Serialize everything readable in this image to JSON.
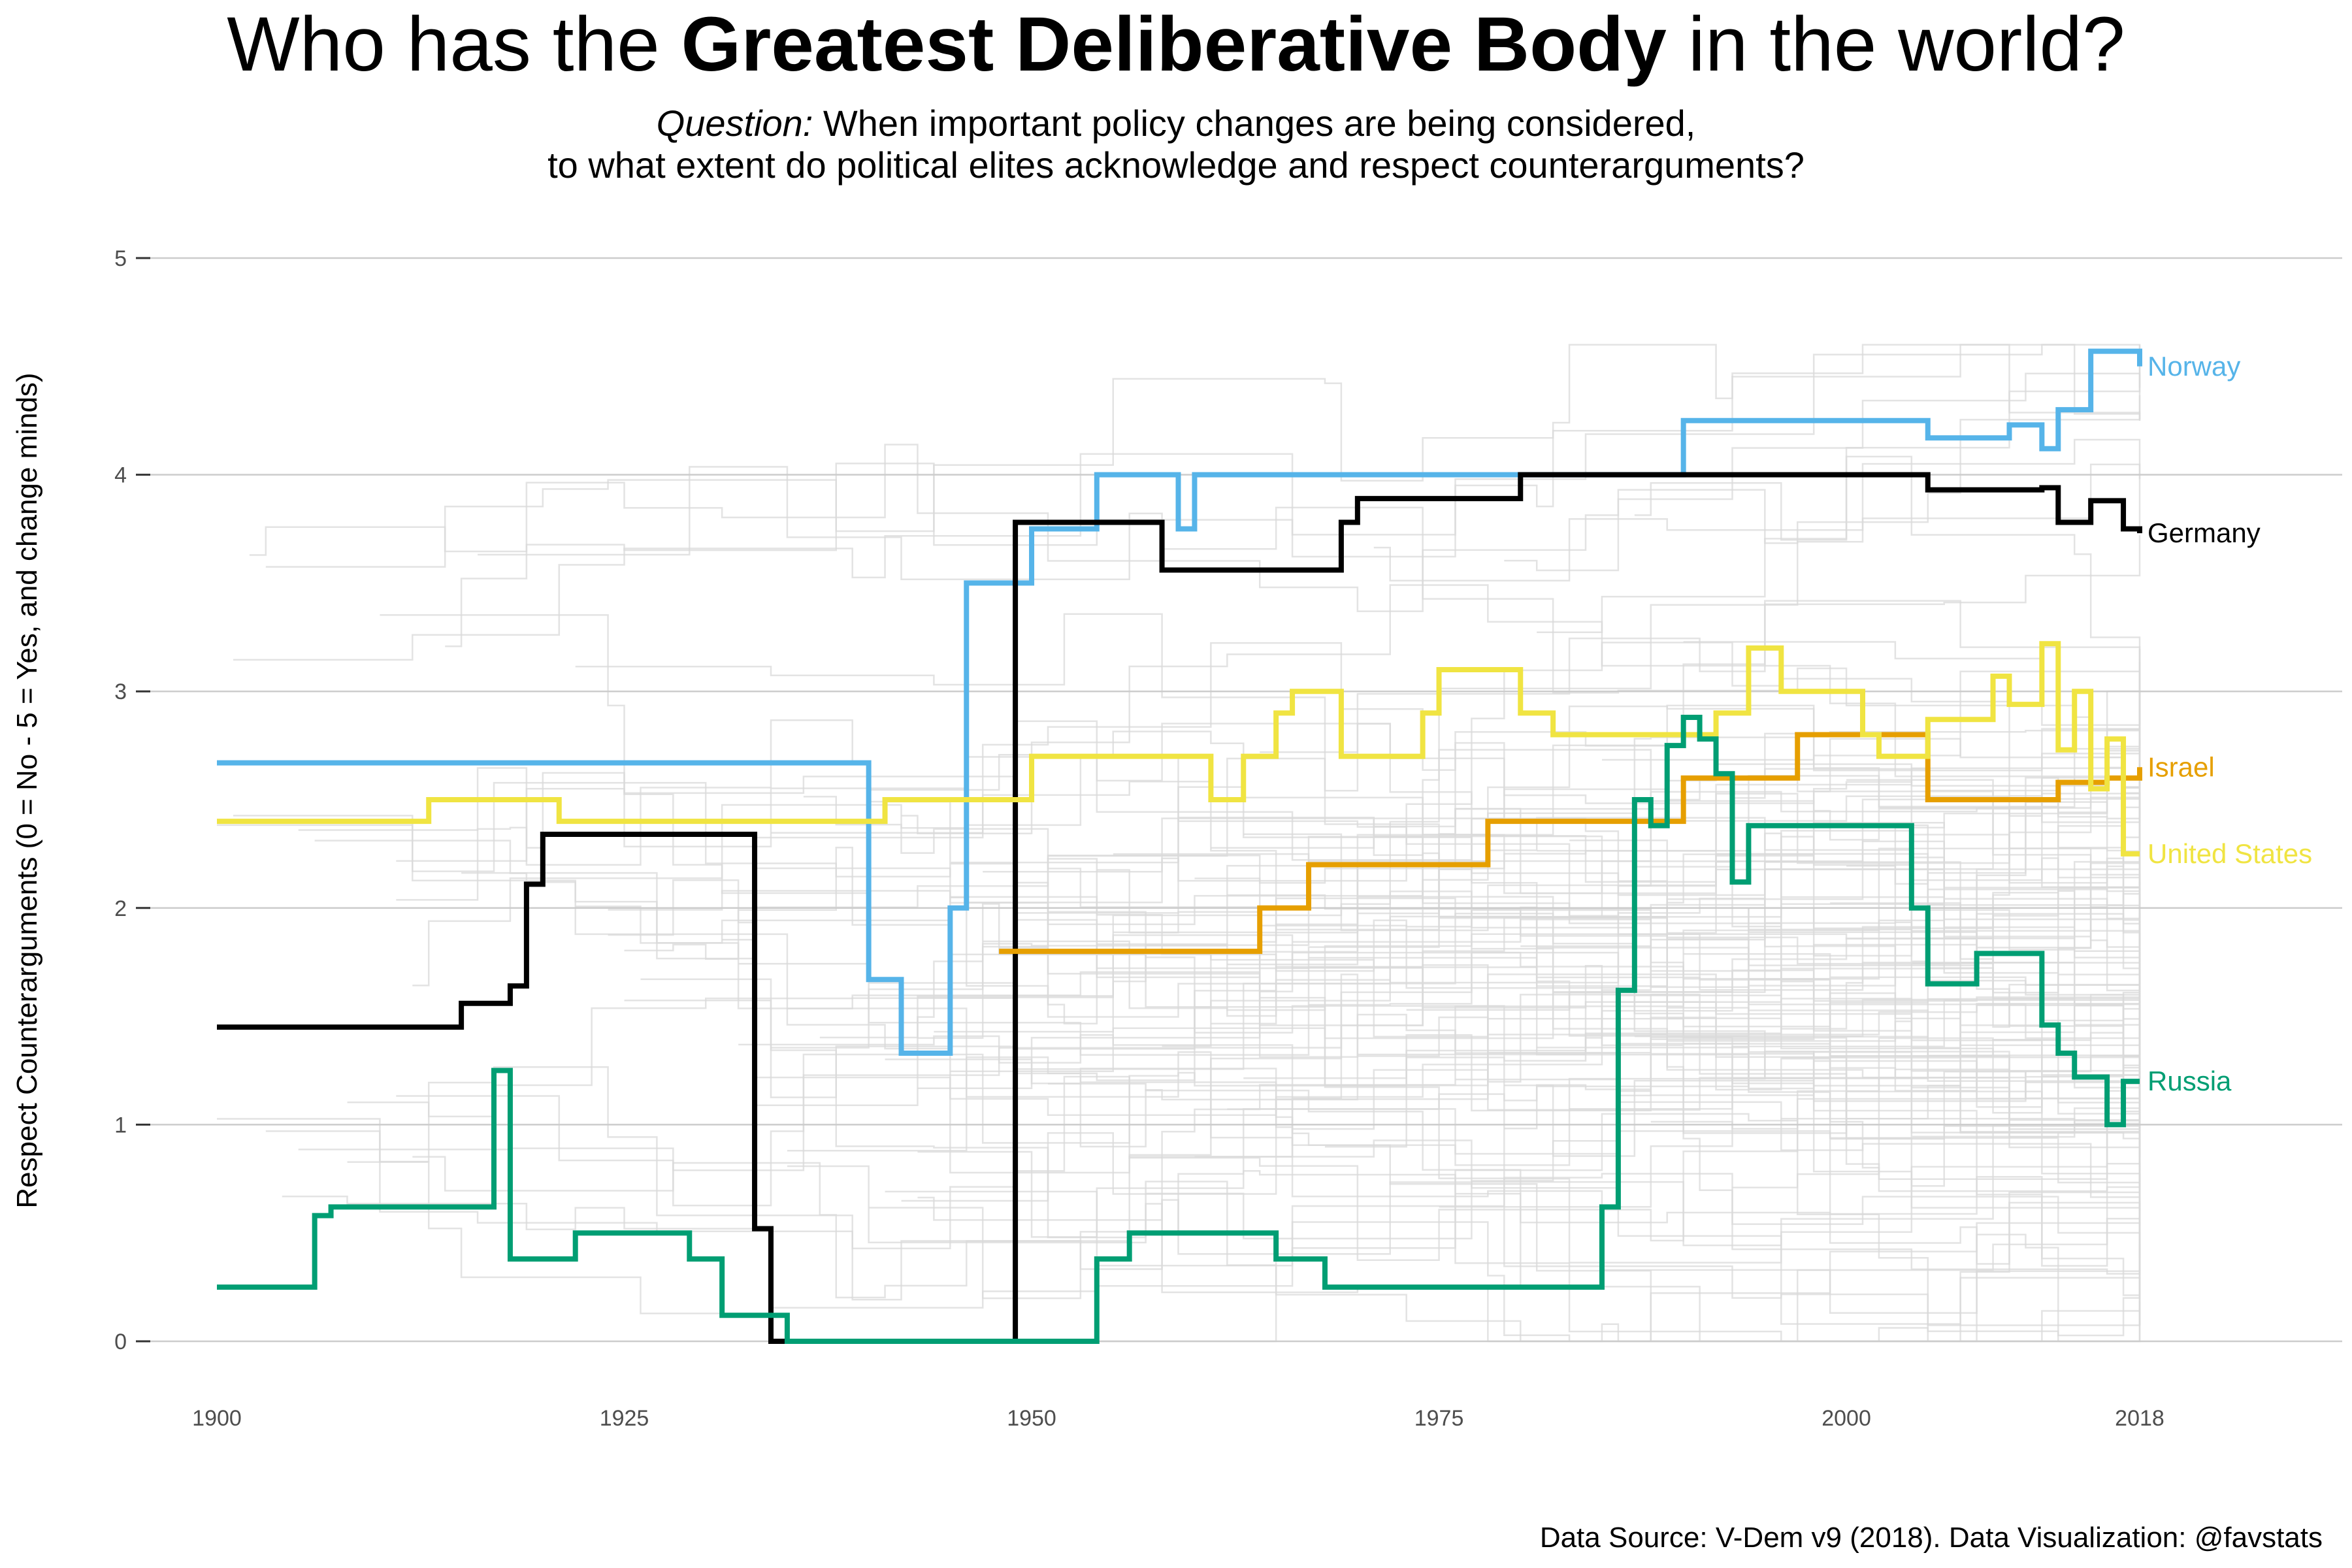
{
  "title": {
    "prefix": "Who has the ",
    "bold": "Greatest Deliberative Body",
    "suffix": " in the world?"
  },
  "subtitle": {
    "italic": "Question:",
    "line1_rest": " When important policy changes are being considered,",
    "line2": "to what extent do political elites acknowledge and respect counterarguments?"
  },
  "caption": "Data Source: V-Dem v9 (2018). Data Visualization: @favstats",
  "colors": {
    "Norway": "#56B4E9",
    "Germany": "#000000",
    "Israel": "#E69F00",
    "United States": "#F0E442",
    "Russia": "#009E73",
    "background_lines": "#d9d9d9",
    "grid": "#cccccc"
  },
  "chart_data": {
    "type": "line",
    "step": true,
    "title": "Who has the Greatest Deliberative Body in the world?",
    "xlabel": "",
    "ylabel": "Respect Counterarguments (0 = No - 5 = Yes, and change minds)",
    "xlim": [
      1900,
      2018
    ],
    "ylim": [
      0,
      5
    ],
    "x_ticks": [
      1900,
      1925,
      1950,
      1975,
      2000,
      2018
    ],
    "y_ticks": [
      0,
      1,
      2,
      3,
      4,
      5
    ],
    "grid": true,
    "background_series_note": "many grey lines for other countries",
    "series": [
      {
        "name": "Norway",
        "label": "Norway",
        "points": [
          [
            1900,
            2.67
          ],
          [
            1940,
            1.67
          ],
          [
            1942,
            1.33
          ],
          [
            1945,
            2.0
          ],
          [
            1946,
            3.5
          ],
          [
            1950,
            3.75
          ],
          [
            1954,
            4.0
          ],
          [
            1959,
            3.75
          ],
          [
            1960,
            4.0
          ],
          [
            1990,
            4.25
          ],
          [
            2005,
            4.17
          ],
          [
            2010,
            4.23
          ],
          [
            2012,
            4.12
          ],
          [
            2013,
            4.3
          ],
          [
            2015,
            4.57
          ],
          [
            2018,
            4.5
          ]
        ]
      },
      {
        "name": "Germany",
        "label": "Germany",
        "points": [
          [
            1900,
            1.45
          ],
          [
            1915,
            1.56
          ],
          [
            1918,
            1.64
          ],
          [
            1919,
            2.11
          ],
          [
            1920,
            2.34
          ],
          [
            1933,
            0.52
          ],
          [
            1934,
            0.0
          ],
          [
            1949,
            3.78
          ],
          [
            1958,
            3.56
          ],
          [
            1969,
            3.78
          ],
          [
            1970,
            3.89
          ],
          [
            1980,
            4.0
          ],
          [
            2005,
            3.93
          ],
          [
            2012,
            3.94
          ],
          [
            2013,
            3.78
          ],
          [
            2015,
            3.88
          ],
          [
            2017,
            3.75
          ],
          [
            2018,
            3.73
          ]
        ]
      },
      {
        "name": "Israel",
        "label": "Israel",
        "points": [
          [
            1948,
            1.8
          ],
          [
            1964,
            2.0
          ],
          [
            1967,
            2.2
          ],
          [
            1978,
            2.4
          ],
          [
            1990,
            2.6
          ],
          [
            1997,
            2.8
          ],
          [
            2005,
            2.5
          ],
          [
            2013,
            2.58
          ],
          [
            2016,
            2.6
          ],
          [
            2018,
            2.65
          ]
        ]
      },
      {
        "name": "United States",
        "label": "United States",
        "points": [
          [
            1900,
            2.4
          ],
          [
            1913,
            2.5
          ],
          [
            1921,
            2.4
          ],
          [
            1941,
            2.5
          ],
          [
            1950,
            2.7
          ],
          [
            1961,
            2.5
          ],
          [
            1963,
            2.7
          ],
          [
            1965,
            2.9
          ],
          [
            1966,
            3.0
          ],
          [
            1969,
            2.7
          ],
          [
            1974,
            2.9
          ],
          [
            1975,
            3.1
          ],
          [
            1980,
            2.9
          ],
          [
            1982,
            2.8
          ],
          [
            1992,
            2.9
          ],
          [
            1994,
            3.2
          ],
          [
            1996,
            3.0
          ],
          [
            2001,
            2.8
          ],
          [
            2002,
            2.7
          ],
          [
            2005,
            2.87
          ],
          [
            2009,
            3.07
          ],
          [
            2010,
            2.94
          ],
          [
            2012,
            3.22
          ],
          [
            2013,
            2.73
          ],
          [
            2014,
            3.0
          ],
          [
            2015,
            2.55
          ],
          [
            2016,
            2.78
          ],
          [
            2017,
            2.25
          ],
          [
            2018,
            2.25
          ]
        ]
      },
      {
        "name": "Russia",
        "label": "Russia",
        "points": [
          [
            1900,
            0.25
          ],
          [
            1906,
            0.58
          ],
          [
            1907,
            0.62
          ],
          [
            1917,
            1.25
          ],
          [
            1918,
            0.38
          ],
          [
            1922,
            0.5
          ],
          [
            1929,
            0.38
          ],
          [
            1931,
            0.12
          ],
          [
            1935,
            0.0
          ],
          [
            1954,
            0.38
          ],
          [
            1956,
            0.5
          ],
          [
            1965,
            0.38
          ],
          [
            1968,
            0.25
          ],
          [
            1985,
            0.62
          ],
          [
            1986,
            1.62
          ],
          [
            1987,
            2.5
          ],
          [
            1988,
            2.38
          ],
          [
            1989,
            2.75
          ],
          [
            1990,
            2.88
          ],
          [
            1991,
            2.78
          ],
          [
            1992,
            2.62
          ],
          [
            1993,
            2.12
          ],
          [
            1994,
            2.38
          ],
          [
            2004,
            2.0
          ],
          [
            2005,
            1.65
          ],
          [
            2008,
            1.79
          ],
          [
            2012,
            1.46
          ],
          [
            2013,
            1.33
          ],
          [
            2014,
            1.22
          ],
          [
            2016,
            1.0
          ],
          [
            2017,
            1.2
          ],
          [
            2018,
            1.2
          ]
        ]
      }
    ]
  }
}
